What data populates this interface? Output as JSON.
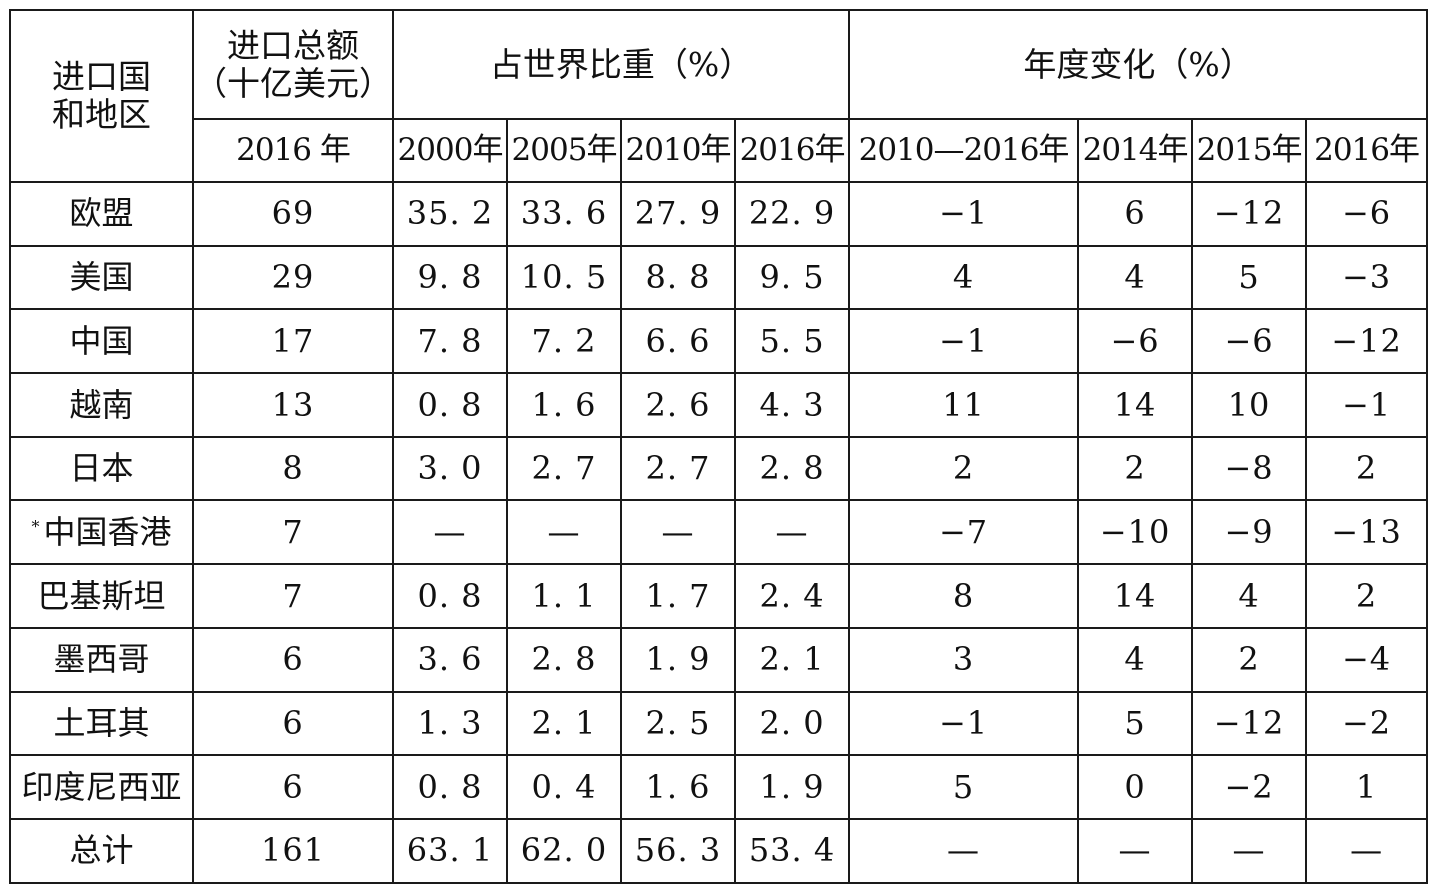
{
  "header": {
    "col_region": "进口国\n和地区",
    "col_total": "进口总额\n（十亿美元）",
    "col_share": "占世界比重（%）",
    "col_change": "年度变化（%）",
    "total_year": "2016 年",
    "share_years": [
      "2000年",
      "2005年",
      "2010年",
      "2016年"
    ],
    "change_years": [
      "2010—2016年",
      "2014年",
      "2015年",
      "2016年"
    ]
  },
  "rows": [
    {
      "region": "欧盟",
      "mark": "",
      "total": "69",
      "share": [
        "35. 2",
        "33. 6",
        "27. 9",
        "22. 9"
      ],
      "change": [
        "−1",
        "6",
        "−12",
        "−6"
      ]
    },
    {
      "region": "美国",
      "mark": "",
      "total": "29",
      "share": [
        "9. 8",
        "10. 5",
        "8. 8",
        "9. 5"
      ],
      "change": [
        "4",
        "4",
        "5",
        "−3"
      ]
    },
    {
      "region": "中国",
      "mark": "",
      "total": "17",
      "share": [
        "7. 8",
        "7. 2",
        "6. 6",
        "5. 5"
      ],
      "change": [
        "−1",
        "−6",
        "−6",
        "−12"
      ]
    },
    {
      "region": "越南",
      "mark": "",
      "total": "13",
      "share": [
        "0. 8",
        "1. 6",
        "2. 6",
        "4. 3"
      ],
      "change": [
        "11",
        "14",
        "10",
        "−1"
      ]
    },
    {
      "region": "日本",
      "mark": "",
      "total": "8",
      "share": [
        "3. 0",
        "2. 7",
        "2. 7",
        "2. 8"
      ],
      "change": [
        "2",
        "2",
        "−8",
        "2"
      ]
    },
    {
      "region": "中国香港",
      "mark": "*",
      "total": "7",
      "share": [
        "—",
        "—",
        "—",
        "—"
      ],
      "change": [
        "−7",
        "−10",
        "−9",
        "−13"
      ]
    },
    {
      "region": "巴基斯坦",
      "mark": "",
      "total": "7",
      "share": [
        "0. 8",
        "1. 1",
        "1. 7",
        "2. 4"
      ],
      "change": [
        "8",
        "14",
        "4",
        "2"
      ]
    },
    {
      "region": "墨西哥",
      "mark": "",
      "total": "6",
      "share": [
        "3. 6",
        "2. 8",
        "1. 9",
        "2. 1"
      ],
      "change": [
        "3",
        "4",
        "2",
        "−4"
      ]
    },
    {
      "region": "土耳其",
      "mark": "",
      "total": "6",
      "share": [
        "1. 3",
        "2. 1",
        "2. 5",
        "2. 0"
      ],
      "change": [
        "−1",
        "5",
        "−12",
        "−2"
      ]
    },
    {
      "region": "印度尼西亚",
      "mark": "",
      "total": "6",
      "share": [
        "0. 8",
        "0. 4",
        "1. 6",
        "1. 9"
      ],
      "change": [
        "5",
        "0",
        "−2",
        "1"
      ]
    },
    {
      "region": "总计",
      "mark": "",
      "total": "161",
      "share": [
        "63. 1",
        "62. 0",
        "56. 3",
        "53. 4"
      ],
      "change": [
        "—",
        "—",
        "—",
        "—"
      ]
    }
  ]
}
